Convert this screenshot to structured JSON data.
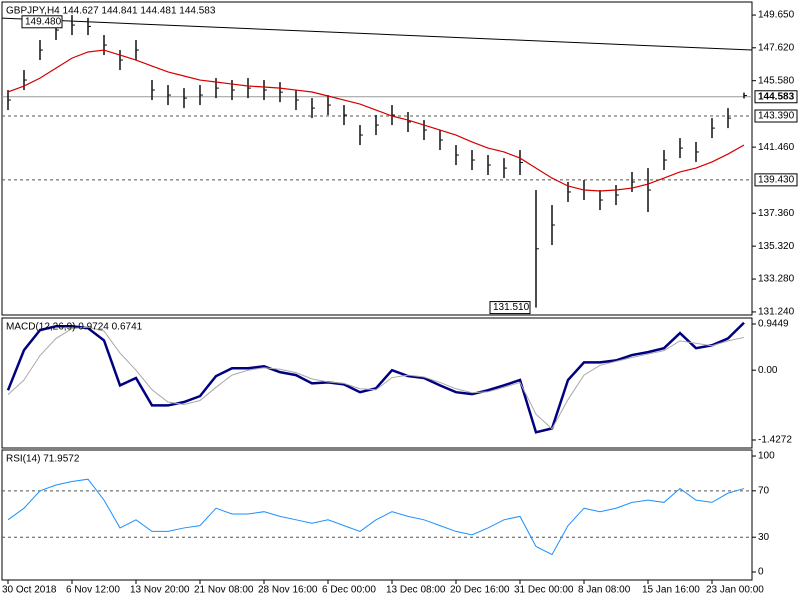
{
  "chart_data": [
    {
      "type": "range-bar",
      "title": "GBPJPY,H4  144.627 144.841 144.481 144.583",
      "color": "#111111",
      "high": [
        145.0,
        146.24,
        148.1,
        149.34,
        149.65,
        149.48,
        148.41,
        147.48,
        148.1,
        145.62,
        145.31,
        145.12,
        145.31,
        145.74,
        145.62,
        145.74,
        145.62,
        145.49,
        145.0,
        144.5,
        144.69,
        144.07,
        142.83,
        143.45,
        144.07,
        143.64,
        143.14,
        142.52,
        141.59,
        141.28,
        140.97,
        140.78,
        141.28,
        138.8,
        137.87,
        139.3,
        139.42,
        138.8,
        139.11,
        139.92,
        140.16,
        141.28,
        142.02,
        141.78,
        143.26,
        143.88,
        144.841
      ],
      "low": [
        143.76,
        145.0,
        146.86,
        148.1,
        148.41,
        148.41,
        147.17,
        146.24,
        146.86,
        144.38,
        144.07,
        143.88,
        144.07,
        144.5,
        144.38,
        144.5,
        144.38,
        144.25,
        143.76,
        143.26,
        143.45,
        142.83,
        141.59,
        142.21,
        142.83,
        142.4,
        141.9,
        141.28,
        140.35,
        140.04,
        139.73,
        139.54,
        139.73,
        131.51,
        135.39,
        138.06,
        138.18,
        137.56,
        137.87,
        138.68,
        137.44,
        140.04,
        140.78,
        140.54,
        142.02,
        142.64,
        144.481
      ],
      "ma": {
        "color": "#d40000",
        "values": [
          144.88,
          145.25,
          145.74,
          146.36,
          146.98,
          147.36,
          147.48,
          147.17,
          146.86,
          146.49,
          146.12,
          145.87,
          145.62,
          145.5,
          145.37,
          145.25,
          145.19,
          145.12,
          145.0,
          144.88,
          144.63,
          144.38,
          144.13,
          143.76,
          143.39,
          143.14,
          142.83,
          142.52,
          142.21,
          141.78,
          141.4,
          141.16,
          140.78,
          140.16,
          139.54,
          139.05,
          138.8,
          138.74,
          138.8,
          138.92,
          139.17,
          139.54,
          139.92,
          140.16,
          140.54,
          141.03,
          141.59
        ]
      },
      "trendline": {
        "color": "#000000",
        "values": [
          149.46,
          147.48
        ]
      },
      "levels": [
        {
          "value": 143.39,
          "label": "143.390"
        },
        {
          "value": 139.43,
          "label": "139.430"
        }
      ],
      "current": {
        "value": 144.583,
        "label": "144.583"
      },
      "annotations": [
        {
          "value": 149.48,
          "label": "149.480"
        },
        {
          "value": 131.51,
          "label": "131.510"
        }
      ],
      "ylim": [
        131.05,
        150.46
      ],
      "yticks": [
        {
          "value": 149.65,
          "label": "149.650"
        },
        {
          "value": 147.62,
          "label": "147.620"
        },
        {
          "value": 145.58,
          "label": "145.580"
        },
        {
          "value": 141.46,
          "label": "141.460"
        },
        {
          "value": 137.36,
          "label": "137.360"
        },
        {
          "value": 135.32,
          "label": "135.320"
        },
        {
          "value": 133.28,
          "label": "133.280"
        },
        {
          "value": 131.24,
          "label": "131.240"
        }
      ]
    },
    {
      "type": "line",
      "title": "MACD(12,26,9) 0.9724 0.6741",
      "series": [
        {
          "color": "#000080",
          "width": 2.5,
          "values": [
            -0.41,
            0.41,
            0.82,
            0.9,
            0.9,
            0.86,
            0.61,
            -0.31,
            -0.16,
            -0.72,
            -0.72,
            -0.65,
            -0.53,
            -0.12,
            0.04,
            0.04,
            0.08,
            -0.04,
            -0.1,
            -0.27,
            -0.25,
            -0.29,
            -0.45,
            -0.37,
            0.0,
            -0.12,
            -0.16,
            -0.31,
            -0.45,
            -0.49,
            -0.41,
            -0.31,
            -0.2,
            -1.27,
            -1.19,
            -0.2,
            0.16,
            0.16,
            0.2,
            0.31,
            0.37,
            0.45,
            0.76,
            0.45,
            0.51,
            0.65,
            0.97
          ]
        },
        {
          "color": "#a8a8a8",
          "width": 1,
          "values": [
            -0.5,
            -0.2,
            0.3,
            0.65,
            0.85,
            0.88,
            0.8,
            0.35,
            0.0,
            -0.4,
            -0.65,
            -0.7,
            -0.62,
            -0.35,
            -0.1,
            0.0,
            0.05,
            0.02,
            -0.05,
            -0.18,
            -0.24,
            -0.27,
            -0.38,
            -0.4,
            -0.15,
            -0.1,
            -0.14,
            -0.25,
            -0.38,
            -0.46,
            -0.44,
            -0.35,
            -0.25,
            -0.9,
            -1.2,
            -0.6,
            -0.1,
            0.1,
            0.18,
            0.26,
            0.33,
            0.4,
            0.6,
            0.55,
            0.5,
            0.6,
            0.67
          ]
        }
      ],
      "ylim": [
        -1.591,
        1.0676
      ],
      "yticks": [
        0.9449,
        {
          "value": 0,
          "label": "0.00"
        },
        -1.4272
      ]
    },
    {
      "type": "line",
      "title": "RSI(14) 71.9572",
      "series": [
        {
          "color": "#1e90ff",
          "width": 1,
          "values": [
            45,
            55,
            70,
            75,
            78,
            80,
            62,
            38,
            45,
            35,
            35,
            38,
            40,
            55,
            50,
            50,
            52,
            48,
            45,
            42,
            45,
            40,
            35,
            45,
            52,
            48,
            45,
            40,
            35,
            32,
            38,
            45,
            48,
            22,
            15,
            40,
            55,
            52,
            55,
            60,
            62,
            60,
            72,
            62,
            60,
            68,
            71.9572
          ]
        }
      ],
      "ylim": [
        -6.9,
        105.2
      ],
      "yticks": [
        100,
        70,
        30,
        0
      ],
      "levels": [
        70,
        30
      ],
      "categories": [
        "30 Oct 2018",
        null,
        null,
        null,
        "6 Nov 12:00",
        null,
        null,
        null,
        "13 Nov 20:00",
        null,
        null,
        null,
        "21 Nov 08:00",
        null,
        null,
        null,
        "28 Nov 16:00",
        null,
        null,
        null,
        "6 Dec 00:00",
        null,
        null,
        null,
        "13 Dec 08:00",
        null,
        null,
        null,
        "20 Dec 16:00",
        null,
        null,
        null,
        "31 Dec 00:00",
        null,
        null,
        null,
        "8 Jan 08:00",
        null,
        null,
        null,
        "15 Jan 16:00",
        null,
        null,
        null,
        "23 Jan 00:00",
        null,
        null
      ]
    }
  ]
}
